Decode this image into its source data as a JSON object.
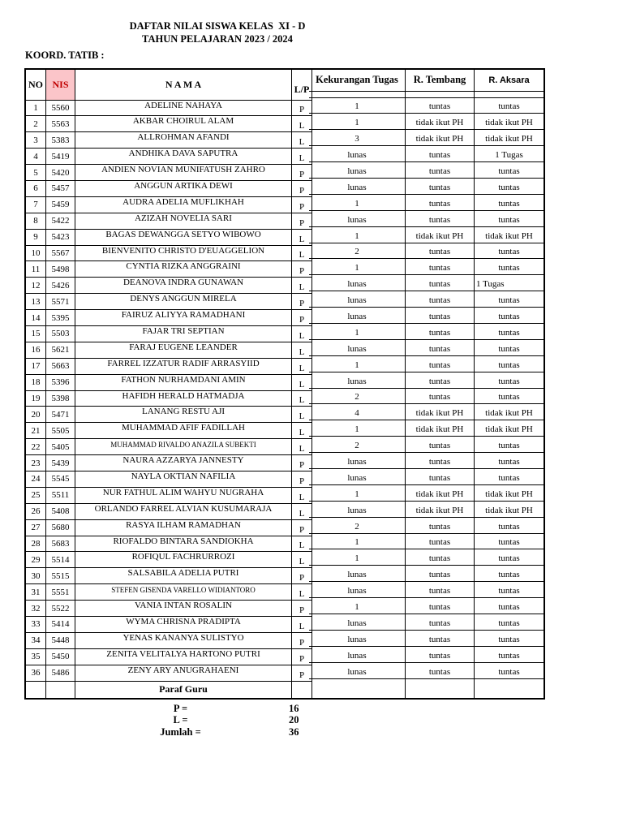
{
  "doc": {
    "title_line1": "DAFTAR NILAI SISWA KELAS  XI - D",
    "title_line2": "TAHUN PELAJARAN 2023 / 2024",
    "coord_label": "KOORD. TATIB :"
  },
  "colors": {
    "nis_header_bg": "#fbc5c9",
    "nis_header_text": "#c00000",
    "border": "#000000",
    "page_bg": "#ffffff"
  },
  "table": {
    "headers": {
      "no": "NO",
      "nis": "NIS",
      "nama": "N A M A",
      "lp": "L/P",
      "kekurangan_tugas": "Kekurangan Tugas",
      "r_tembang": "R. Tembang",
      "r_aksara": "R. Aksara"
    },
    "rows": [
      {
        "no": "1",
        "nis": "5560",
        "nama": "ADELINE NAHAYA",
        "lp": "P",
        "tugas": "1",
        "tembang": "tuntas",
        "aksara": "tuntas"
      },
      {
        "no": "2",
        "nis": "5563",
        "nama": "AKBAR CHOIRUL ALAM",
        "lp": "L",
        "tugas": "1",
        "tembang": "tidak ikut PH",
        "aksara": "tidak ikut PH"
      },
      {
        "no": "3",
        "nis": "5383",
        "nama": "ALLROHMAN AFANDI",
        "lp": "L",
        "tugas": "3",
        "tembang": "tidak ikut PH",
        "aksara": "tidak ikut PH"
      },
      {
        "no": "4",
        "nis": "5419",
        "nama": "ANDHIKA DAVA SAPUTRA",
        "lp": "L",
        "tugas": "lunas",
        "tembang": "tuntas",
        "aksara": "1 Tugas"
      },
      {
        "no": "5",
        "nis": "5420",
        "nama": "ANDIEN NOVIAN MUNIFATUSH ZAHRO",
        "lp": "P",
        "tugas": "lunas",
        "tembang": "tuntas",
        "aksara": "tuntas"
      },
      {
        "no": "6",
        "nis": "5457",
        "nama": "ANGGUN ARTIKA DEWI",
        "lp": "P",
        "tugas": "lunas",
        "tembang": "tuntas",
        "aksara": "tuntas"
      },
      {
        "no": "7",
        "nis": "5459",
        "nama": "AUDRA ADELIA MUFLIKHAH",
        "lp": "P",
        "tugas": "1",
        "tembang": "tuntas",
        "aksara": "tuntas"
      },
      {
        "no": "8",
        "nis": "5422",
        "nama": "AZIZAH NOVELIA SARI",
        "lp": "P",
        "tugas": "lunas",
        "tembang": "tuntas",
        "aksara": "tuntas"
      },
      {
        "no": "9",
        "nis": "5423",
        "nama": "BAGAS DEWANGGA SETYO WIBOWO",
        "lp": "L",
        "tugas": "1",
        "tembang": "tidak ikut PH",
        "aksara": "tidak ikut PH"
      },
      {
        "no": "10",
        "nis": "5567",
        "nama": "BIENVENITO CHRISTO D'EUAGGELION",
        "lp": "L",
        "tugas": "2",
        "tembang": "tuntas",
        "aksara": "tuntas"
      },
      {
        "no": "11",
        "nis": "5498",
        "nama": "CYNTIA RIZKA ANGGRAINI",
        "lp": "P",
        "tugas": "1",
        "tembang": "tuntas",
        "aksara": "tuntas"
      },
      {
        "no": "12",
        "nis": "5426",
        "nama": "DEANOVA INDRA GUNAWAN",
        "lp": "L",
        "tugas": "lunas",
        "tembang": "tuntas",
        "aksara": "1 Tugas",
        "aksara_align": "left"
      },
      {
        "no": "13",
        "nis": "5571",
        "nama": "DENYS ANGGUN MIRELA",
        "lp": "P",
        "tugas": "lunas",
        "tembang": "tuntas",
        "aksara": "tuntas"
      },
      {
        "no": "14",
        "nis": "5395",
        "nama": "FAIRUZ ALIYYA RAMADHANI",
        "lp": "P",
        "tugas": "lunas",
        "tembang": "tuntas",
        "aksara": "tuntas"
      },
      {
        "no": "15",
        "nis": "5503",
        "nama": "FAJAR TRI SEPTIAN",
        "lp": "L",
        "tugas": "1",
        "tembang": "tuntas",
        "aksara": "tuntas"
      },
      {
        "no": "16",
        "nis": "5621",
        "nama": "FARAJ EUGENE LEANDER",
        "lp": "L",
        "tugas": "lunas",
        "tembang": "tuntas",
        "aksara": "tuntas"
      },
      {
        "no": "17",
        "nis": "5663",
        "nama": "FARREL IZZATUR RADIF ARRASYIID",
        "lp": "L",
        "tugas": "1",
        "tembang": "tuntas",
        "aksara": "tuntas"
      },
      {
        "no": "18",
        "nis": "5396",
        "nama": "FATHON NURHAMDANI AMIN",
        "lp": "L",
        "tugas": "lunas",
        "tembang": "tuntas",
        "aksara": "tuntas"
      },
      {
        "no": "19",
        "nis": "5398",
        "nama": "HAFIDH HERALD HATMADJA",
        "lp": "L",
        "tugas": "2",
        "tembang": "tuntas",
        "aksara": "tuntas"
      },
      {
        "no": "20",
        "nis": "5471",
        "nama": "LANANG RESTU AJI",
        "lp": "L",
        "tugas": "4",
        "tembang": "tidak ikut PH",
        "aksara": "tidak ikut PH"
      },
      {
        "no": "21",
        "nis": "5505",
        "nama": "MUHAMMAD AFIF FADILLAH",
        "lp": "L",
        "tugas": "1",
        "tembang": "tidak ikut PH",
        "aksara": "tidak ikut PH"
      },
      {
        "no": "22",
        "nis": "5405",
        "nama": "MUHAMMAD RIVALDO ANAZILA SUBEKTI",
        "lp": "L",
        "tugas": "2",
        "tembang": "tuntas",
        "aksara": "tuntas",
        "small": true
      },
      {
        "no": "23",
        "nis": "5439",
        "nama": "NAURA AZZARYA JANNESTY",
        "lp": "P",
        "tugas": "lunas",
        "tembang": "tuntas",
        "aksara": "tuntas"
      },
      {
        "no": "24",
        "nis": "5545",
        "nama": "NAYLA OKTIAN NAFILIA",
        "lp": "P",
        "tugas": "lunas",
        "tembang": "tuntas",
        "aksara": "tuntas"
      },
      {
        "no": "25",
        "nis": "5511",
        "nama": "NUR FATHUL ALIM WAHYU NUGRAHA",
        "lp": "L",
        "tugas": "1",
        "tembang": "tidak ikut PH",
        "aksara": "tidak ikut PH"
      },
      {
        "no": "26",
        "nis": "5408",
        "nama": "ORLANDO FARREL ALVIAN KUSUMARAJA",
        "lp": "L",
        "tugas": "lunas",
        "tembang": "tidak ikut PH",
        "aksara": "tidak ikut PH"
      },
      {
        "no": "27",
        "nis": "5680",
        "nama": "RASYA ILHAM RAMADHAN",
        "lp": "P",
        "tugas": "2",
        "tembang": "tuntas",
        "aksara": "tuntas"
      },
      {
        "no": "28",
        "nis": "5683",
        "nama": "RIOFALDO BINTARA SANDIOKHA",
        "lp": "L",
        "tugas": "1",
        "tembang": "tuntas",
        "aksara": "tuntas"
      },
      {
        "no": "29",
        "nis": "5514",
        "nama": "ROFIQUL FACHRURROZI",
        "lp": "L",
        "tugas": "1",
        "tembang": "tuntas",
        "aksara": "tuntas"
      },
      {
        "no": "30",
        "nis": "5515",
        "nama": "SALSABILA ADELIA PUTRI",
        "lp": "P",
        "tugas": "lunas",
        "tembang": "tuntas",
        "aksara": "tuntas"
      },
      {
        "no": "31",
        "nis": "5551",
        "nama": "STEFEN GISENDA VARELLO WIDIANTORO",
        "lp": "L",
        "tugas": "lunas",
        "tembang": "tuntas",
        "aksara": "tuntas",
        "small": true
      },
      {
        "no": "32",
        "nis": "5522",
        "nama": "VANIA INTAN ROSALIN",
        "lp": "P",
        "tugas": "1",
        "tembang": "tuntas",
        "aksara": "tuntas"
      },
      {
        "no": "33",
        "nis": "5414",
        "nama": "WYMA CHRISNA PRADIPTA",
        "lp": "L",
        "tugas": "lunas",
        "tembang": "tuntas",
        "aksara": "tuntas"
      },
      {
        "no": "34",
        "nis": "5448",
        "nama": "YENAS KANANYA SULISTYO",
        "lp": "P",
        "tugas": "lunas",
        "tembang": "tuntas",
        "aksara": "tuntas"
      },
      {
        "no": "35",
        "nis": "5450",
        "nama": "ZENITA VELITALYA HARTONO PUTRI",
        "lp": "P",
        "tugas": "lunas",
        "tembang": "tuntas",
        "aksara": "tuntas"
      },
      {
        "no": "36",
        "nis": "5486",
        "nama": "ZENY ARY ANUGRAHAENI",
        "lp": "P",
        "tugas": "lunas",
        "tembang": "tuntas",
        "aksara": "tuntas"
      }
    ],
    "footer_label": "Paraf Guru"
  },
  "summary": {
    "rows": [
      {
        "label": "P =",
        "value": "16"
      },
      {
        "label": "L =",
        "value": "20"
      },
      {
        "label": "Jumlah =",
        "value": "36"
      }
    ]
  }
}
